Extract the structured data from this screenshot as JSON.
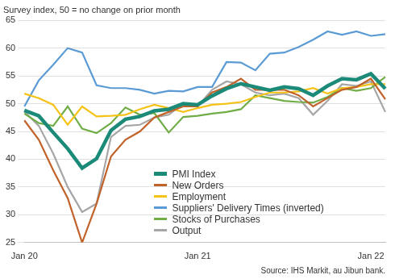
{
  "chart_data": {
    "type": "line",
    "y_label": "Survey index, 50 = no change on prior month",
    "source": "Source: IHS Markit, au Jibun bank.",
    "categories": [
      "Jan 20",
      null,
      null,
      null,
      null,
      null,
      null,
      null,
      null,
      null,
      null,
      null,
      "Jan 21",
      null,
      null,
      null,
      null,
      null,
      null,
      null,
      null,
      null,
      null,
      null,
      "Jan 22",
      null
    ],
    "series": [
      {
        "name": "PMI Index",
        "color": "#1b8a78",
        "values": [
          48.8,
          47.8,
          44.8,
          41.9,
          38.4,
          40.1,
          45.2,
          47.2,
          47.7,
          48.7,
          49.0,
          50.0,
          49.8,
          51.4,
          52.7,
          53.6,
          53.0,
          52.4,
          53.0,
          52.7,
          51.5,
          53.2,
          54.5,
          54.3,
          55.4,
          52.7
        ]
      },
      {
        "name": "New Orders",
        "color": "#c0622a",
        "values": [
          47.0,
          43.5,
          38.0,
          33.0,
          25.0,
          32.0,
          40.5,
          43.5,
          45.0,
          47.5,
          48.5,
          49.5,
          49.5,
          52.0,
          53.0,
          54.5,
          52.5,
          52.5,
          52.5,
          51.5,
          49.5,
          51.0,
          52.5,
          53.0,
          54.5,
          50.8
        ]
      },
      {
        "name": "Employment",
        "color": "#f5c218",
        "values": [
          51.8,
          51.0,
          49.8,
          46.2,
          49.5,
          47.7,
          47.8,
          48.0,
          49.0,
          49.8,
          49.2,
          48.5,
          49.2,
          49.8,
          50.0,
          50.3,
          51.2,
          52.0,
          52.0,
          52.2,
          52.8,
          51.8,
          52.8,
          53.0,
          53.5,
          53.5
        ]
      },
      {
        "name": "Suppliers' Delivery Times (inverted)",
        "color": "#5b9bd5",
        "values": [
          49.5,
          54.2,
          57.0,
          60.0,
          59.2,
          53.3,
          52.8,
          52.8,
          52.5,
          51.8,
          52.3,
          52.2,
          53.0,
          53.0,
          57.5,
          57.4,
          56.0,
          59.0,
          59.2,
          60.2,
          61.5,
          63.0,
          62.4,
          63.0,
          62.2,
          62.5
        ]
      },
      {
        "name": "Stocks of Purchases",
        "color": "#70ad47",
        "values": [
          48.2,
          46.5,
          46.0,
          49.5,
          45.5,
          44.7,
          46.5,
          49.3,
          48.0,
          48.3,
          44.8,
          47.6,
          47.8,
          48.2,
          48.5,
          49.0,
          51.5,
          51.0,
          50.5,
          50.3,
          50.2,
          51.2,
          52.8,
          52.3,
          52.8,
          54.8
        ]
      },
      {
        "name": "Output",
        "color": "#a6a6a6",
        "values": [
          48.6,
          46.0,
          41.0,
          35.0,
          30.5,
          32.0,
          44.0,
          46.0,
          46.2,
          47.5,
          48.0,
          50.0,
          49.5,
          52.5,
          54.0,
          53.5,
          52.0,
          51.5,
          51.8,
          51.0,
          48.0,
          50.5,
          53.5,
          53.2,
          54.0,
          48.5
        ]
      }
    ],
    "ylim": [
      25,
      65
    ],
    "yticks": [
      25,
      30,
      35,
      40,
      45,
      50,
      55,
      60,
      65
    ],
    "grid": true,
    "legend": "lower center"
  }
}
